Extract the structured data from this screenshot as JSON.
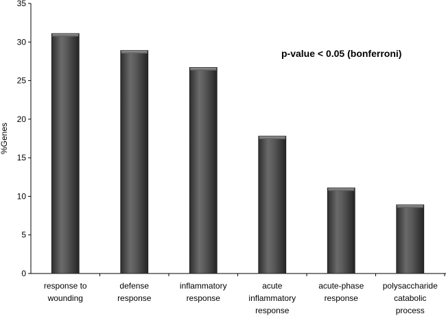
{
  "chart_data": {
    "type": "bar",
    "title": "",
    "xlabel": "",
    "ylabel": "%Genes",
    "ylim": [
      0,
      35
    ],
    "yticks": [
      0,
      5,
      10,
      15,
      20,
      25,
      30,
      35
    ],
    "grid": false,
    "categories": [
      [
        "response to",
        "wounding"
      ],
      [
        "defense",
        "response"
      ],
      [
        "inflammatory",
        "response"
      ],
      [
        "acute",
        "inflammatory",
        "response"
      ],
      [
        "acute-phase",
        "response"
      ],
      [
        "polysaccharide",
        "catabolic",
        "process"
      ]
    ],
    "values": [
      31.1,
      28.9,
      26.7,
      17.8,
      11.1,
      8.9
    ],
    "annotation": "p-value < 0.05 (bonferroni)",
    "bar_color": "#4f4f4f"
  }
}
